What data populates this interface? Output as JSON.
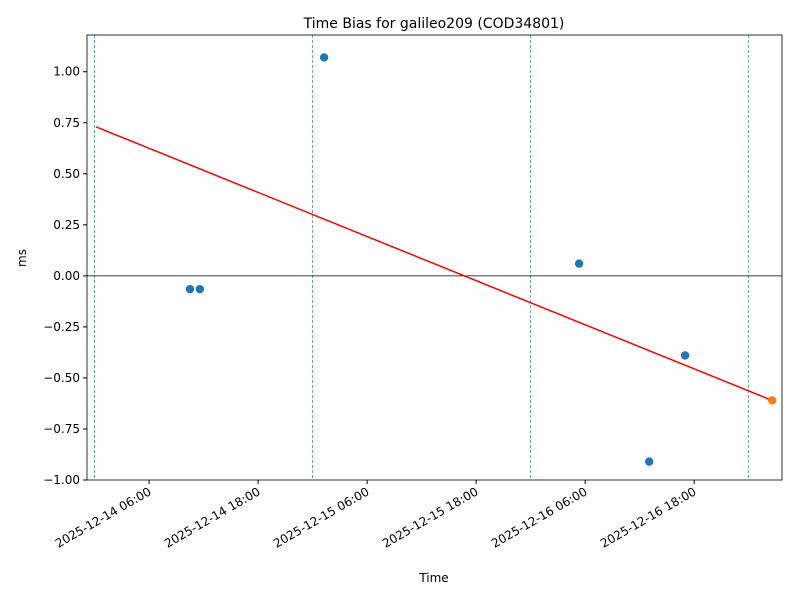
{
  "chart_data": {
    "type": "scatter",
    "title": "Time Bias for galileo209 (COD34801)",
    "x_label": "Time",
    "y_label": "ms",
    "xlim": [
      "2025-12-13 23:10",
      "2025-12-17 03:40"
    ],
    "xticks": [
      "2025-12-14 06:00",
      "2025-12-14 18:00",
      "2025-12-15 06:00",
      "2025-12-15 18:00",
      "2025-12-16 06:00",
      "2025-12-16 18:00"
    ],
    "ylim": [
      -1.0,
      1.18
    ],
    "yticks": [
      {
        "value": -1,
        "label": "−1.00"
      },
      {
        "value": -0.75,
        "label": "−0.75"
      },
      {
        "value": -0.5,
        "label": "−0.50"
      },
      {
        "value": -0.25,
        "label": "−0.25"
      },
      {
        "value": 0,
        "label": "0.00"
      },
      {
        "value": 0.25,
        "label": "0.25"
      },
      {
        "value": 0.5,
        "label": "0.50"
      },
      {
        "value": 0.75,
        "label": "0.75"
      },
      {
        "value": 1,
        "label": "1.00"
      }
    ],
    "vlines": [
      "2025-12-14 00:00",
      "2025-12-15 00:00",
      "2025-12-16 00:00",
      "2025-12-17 00:00"
    ],
    "hline": 0,
    "series": [
      {
        "type": "scatter",
        "color": "#1f77b4",
        "x": [
          "2025-12-14 10:30",
          "2025-12-14 11:35",
          "2025-12-15 01:16",
          "2025-12-16 05:20",
          "2025-12-16 13:03",
          "2025-12-16 17:00"
        ],
        "values": [
          -0.065,
          -0.065,
          1.07,
          0.06,
          -0.91,
          -0.39
        ]
      },
      {
        "type": "scatter",
        "color": "#ff7f0e",
        "x": [
          "2025-12-17 02:35"
        ],
        "values": [
          -0.61
        ]
      },
      {
        "type": "line",
        "color": "#ff0000",
        "x": [
          "2025-12-14 00:10",
          "2025-12-17 02:35"
        ],
        "values": [
          0.73,
          -0.61
        ]
      }
    ]
  }
}
